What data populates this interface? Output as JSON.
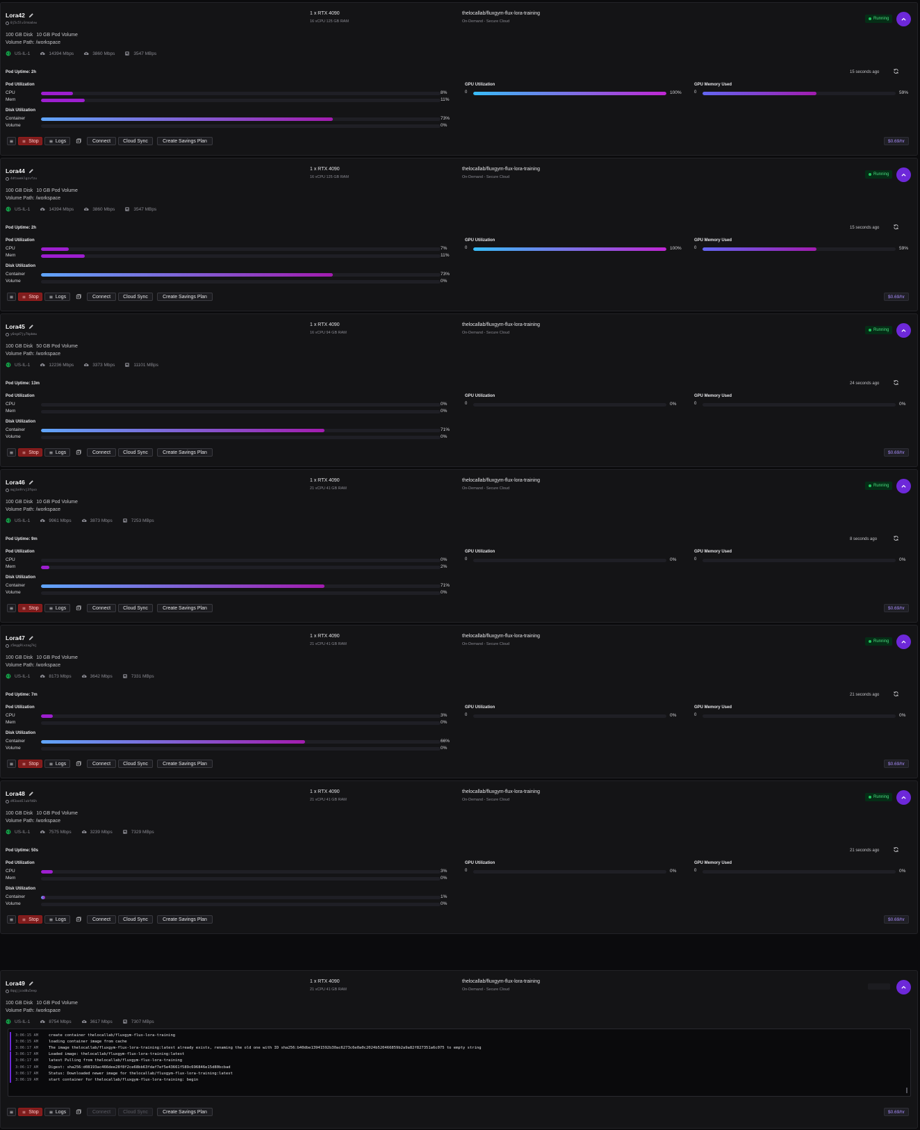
{
  "pods": [
    {
      "name": "Lora42",
      "id": "0j5c5lv3rmadvw",
      "gpu": "1 x RTX 4090",
      "cpu_ram": "16 vCPU 125 GB RAM",
      "image": "thelocallab/fluxgym-flux-lora-training",
      "cloud": "On-Demand - Secure Cloud",
      "status": "Running",
      "disk": "100 GB Disk",
      "pod_volume": "10 GB Pod Volume",
      "volume_path": "Volume Path: /workspace",
      "region": "US-IL-1",
      "net_down": "14394 Mbps",
      "net_up": "3860 Mbps",
      "disk_speed": "3547 MBps",
      "uptime": "Pod Uptime: 2h",
      "updated": "15 seconds ago",
      "pod_util_title": "Pod Utilization",
      "disk_util_title": "Disk Utilization",
      "gpu_util_title": "GPU Utilization",
      "gpu_mem_title": "GPU Memory Used",
      "cpu_label": "CPU",
      "mem_label": "Mem",
      "container_label": "Container",
      "volume_label": "Volume",
      "cpu_pct": 8,
      "cpu_text": "8%",
      "mem_pct": 11,
      "mem_text": "11%",
      "container_pct": 73,
      "container_text": "73%",
      "volume_pct": 0,
      "volume_text": "0%",
      "gpu_zero": "0",
      "gpu_pct": 100,
      "gpu_text": "100%",
      "gpumem_zero": "0",
      "gpumem_pct": 59,
      "gpumem_text": "59%",
      "stop": "Stop",
      "logs": "Logs",
      "connect": "Connect",
      "cloud_sync": "Cloud Sync",
      "savings": "Create Savings Plan",
      "price": "$0.69/hr"
    },
    {
      "name": "Lora44",
      "id": "4dtaxmklgzvfzu",
      "gpu": "1 x RTX 4090",
      "cpu_ram": "16 vCPU 125 GB RAM",
      "image": "thelocallab/fluxgym-flux-lora-training",
      "cloud": "On-Demand - Secure Cloud",
      "status": "Running",
      "disk": "100 GB Disk",
      "pod_volume": "10 GB Pod Volume",
      "volume_path": "Volume Path: /workspace",
      "region": "US-IL-1",
      "net_down": "14394 Mbps",
      "net_up": "3860 Mbps",
      "disk_speed": "3547 MBps",
      "uptime": "Pod Uptime: 2h",
      "updated": "15 seconds ago",
      "pod_util_title": "Pod Utilization",
      "disk_util_title": "Disk Utilization",
      "gpu_util_title": "GPU Utilization",
      "gpu_mem_title": "GPU Memory Used",
      "cpu_label": "CPU",
      "mem_label": "Mem",
      "container_label": "Container",
      "volume_label": "Volume",
      "cpu_pct": 7,
      "cpu_text": "7%",
      "mem_pct": 11,
      "mem_text": "11%",
      "container_pct": 73,
      "container_text": "73%",
      "volume_pct": 0,
      "volume_text": "0%",
      "gpu_zero": "0",
      "gpu_pct": 100,
      "gpu_text": "100%",
      "gpumem_zero": "0",
      "gpumem_pct": 59,
      "gpumem_text": "59%",
      "stop": "Stop",
      "logs": "Logs",
      "connect": "Connect",
      "cloud_sync": "Cloud Sync",
      "savings": "Create Savings Plan",
      "price": "$0.69/hr"
    },
    {
      "name": "Lora45",
      "id": "y6ngd7jy7bpkmw",
      "gpu": "1 x RTX 4090",
      "cpu_ram": "16 vCPU 94 GB RAM",
      "image": "thelocallab/fluxgym-flux-lora-training",
      "cloud": "On-Demand - Secure Cloud",
      "status": "Running",
      "disk": "100 GB Disk",
      "pod_volume": "50 GB Pod Volume",
      "volume_path": "Volume Path: /workspace",
      "region": "US-IL-1",
      "net_down": "12236 Mbps",
      "net_up": "3373 Mbps",
      "disk_speed": "11101 MBps",
      "uptime": "Pod Uptime: 13m",
      "updated": "24 seconds ago",
      "pod_util_title": "Pod Utilization",
      "disk_util_title": "Disk Utilization",
      "gpu_util_title": "GPU Utilization",
      "gpu_mem_title": "GPU Memory Used",
      "cpu_label": "CPU",
      "mem_label": "Mem",
      "container_label": "Container",
      "volume_label": "Volume",
      "cpu_pct": 0,
      "cpu_text": "0%",
      "mem_pct": 0,
      "mem_text": "0%",
      "container_pct": 71,
      "container_text": "71%",
      "volume_pct": 0,
      "volume_text": "0%",
      "gpu_zero": "0",
      "gpu_pct": 0,
      "gpu_text": "0%",
      "gpumem_zero": "0",
      "gpumem_pct": 0,
      "gpumem_text": "0%",
      "stop": "Stop",
      "logs": "Logs",
      "connect": "Connect",
      "cloud_sync": "Cloud Sync",
      "savings": "Create Savings Plan",
      "price": "$0.69/hr"
    },
    {
      "name": "Lora46",
      "id": "mqjbn9rvj3fqxo",
      "gpu": "1 x RTX 4090",
      "cpu_ram": "21 vCPU 41 GB RAM",
      "image": "thelocallab/fluxgym-flux-lora-training",
      "cloud": "On-Demand - Secure Cloud",
      "status": "Running",
      "disk": "100 GB Disk",
      "pod_volume": "10 GB Pod Volume",
      "volume_path": "Volume Path: /workspace",
      "region": "US-IL-1",
      "net_down": "9961 Mbps",
      "net_up": "3873 Mbps",
      "disk_speed": "7253 MBps",
      "uptime": "Pod Uptime: 9m",
      "updated": "8 seconds ago",
      "pod_util_title": "Pod Utilization",
      "disk_util_title": "Disk Utilization",
      "gpu_util_title": "GPU Utilization",
      "gpu_mem_title": "GPU Memory Used",
      "cpu_label": "CPU",
      "mem_label": "Mem",
      "container_label": "Container",
      "volume_label": "Volume",
      "cpu_pct": 0,
      "cpu_text": "0%",
      "mem_pct": 2,
      "mem_text": "2%",
      "container_pct": 71,
      "container_text": "71%",
      "volume_pct": 0,
      "volume_text": "0%",
      "gpu_zero": "0",
      "gpu_pct": 0,
      "gpu_text": "0%",
      "gpumem_zero": "0",
      "gpumem_pct": 0,
      "gpumem_text": "0%",
      "stop": "Stop",
      "logs": "Logs",
      "connect": "Connect",
      "cloud_sync": "Cloud Sync",
      "savings": "Create Savings Plan",
      "price": "$0.69/hr"
    },
    {
      "name": "Lora47",
      "id": "z5mgg9ixzag7kj",
      "gpu": "1 x RTX 4090",
      "cpu_ram": "21 vCPU 41 GB RAM",
      "image": "thelocallab/fluxgym-flux-lora-training",
      "cloud": "On-Demand - Secure Cloud",
      "status": "Running",
      "disk": "100 GB Disk",
      "pod_volume": "10 GB Pod Volume",
      "volume_path": "Volume Path: /workspace",
      "region": "US-IL-1",
      "net_down": "8173 Mbps",
      "net_up": "3642 Mbps",
      "disk_speed": "7331 MBps",
      "uptime": "Pod Uptime: 7m",
      "updated": "21 seconds ago",
      "pod_util_title": "Pod Utilization",
      "disk_util_title": "Disk Utilization",
      "gpu_util_title": "GPU Utilization",
      "gpu_mem_title": "GPU Memory Used",
      "cpu_label": "CPU",
      "mem_label": "Mem",
      "container_label": "Container",
      "volume_label": "Volume",
      "cpu_pct": 3,
      "cpu_text": "3%",
      "mem_pct": 0,
      "mem_text": "0%",
      "container_pct": 66,
      "container_text": "66%",
      "volume_pct": 0,
      "volume_text": "0%",
      "gpu_zero": "0",
      "gpu_pct": 0,
      "gpu_text": "0%",
      "gpumem_zero": "0",
      "gpumem_pct": 0,
      "gpumem_text": "0%",
      "stop": "Stop",
      "logs": "Logs",
      "connect": "Connect",
      "cloud_sync": "Cloud Sync",
      "savings": "Create Savings Plan",
      "price": "$0.69/hr"
    },
    {
      "name": "Lora48",
      "id": "d93aod1lubfd6h",
      "gpu": "1 x RTX 4090",
      "cpu_ram": "21 vCPU 41 GB RAM",
      "image": "thelocallab/fluxgym-flux-lora-training",
      "cloud": "On-Demand - Secure Cloud",
      "status": "Running",
      "disk": "100 GB Disk",
      "pod_volume": "10 GB Pod Volume",
      "volume_path": "Volume Path: /workspace",
      "region": "US-IL-1",
      "net_down": "7575 Mbps",
      "net_up": "3239 Mbps",
      "disk_speed": "7329 MBps",
      "uptime": "Pod Uptime: 50s",
      "updated": "21 seconds ago",
      "pod_util_title": "Pod Utilization",
      "disk_util_title": "Disk Utilization",
      "gpu_util_title": "GPU Utilization",
      "gpu_mem_title": "GPU Memory Used",
      "cpu_label": "CPU",
      "mem_label": "Mem",
      "container_label": "Container",
      "volume_label": "Volume",
      "cpu_pct": 3,
      "cpu_text": "3%",
      "mem_pct": 0,
      "mem_text": "0%",
      "container_pct": 1,
      "container_text": "1%",
      "volume_pct": 0,
      "volume_text": "0%",
      "gpu_zero": "0",
      "gpu_pct": 0,
      "gpu_text": "0%",
      "gpumem_zero": "0",
      "gpumem_pct": 0,
      "gpumem_text": "0%",
      "stop": "Stop",
      "logs": "Logs",
      "connect": "Connect",
      "cloud_sync": "Cloud Sync",
      "savings": "Create Savings Plan",
      "price": "$0.69/hr"
    }
  ],
  "last_pod": {
    "name": "Lora49",
    "id": "8qqjjcod8u5eep",
    "gpu": "1 x RTX 4090",
    "cpu_ram": "21 vCPU 41 GB RAM",
    "image": "thelocallab/fluxgym-flux-lora-training",
    "cloud": "On-Demand - Secure Cloud",
    "disk": "100 GB Disk",
    "pod_volume": "10 GB Pod Volume",
    "volume_path": "Volume Path: /workspace",
    "region": "US-IL-1",
    "net_down": "8754 Mbps",
    "net_up": "3617 Mbps",
    "disk_speed": "7307 MBps",
    "logs": [
      {
        "time": "3:06:15 AM",
        "text": "create container thelocallab/fluxgym-flux-lora-training"
      },
      {
        "time": "3:06:15 AM",
        "text": "loading container image from cache"
      },
      {
        "time": "3:06:17 AM",
        "text": "The image thelocallab/fluxgym-flux-lora-training:latest already exists, renaming the old one with ID sha256:b40dbe13941592b30ac6273c6e0a0c2024b520466859b2a9a82f827351a6c075 to empty string"
      },
      {
        "time": "3:06:17 AM",
        "text": "Loaded image: thelocallab/fluxgym-flux-lora-training:latest"
      },
      {
        "time": "3:06:17 AM",
        "text": "latest Pulling from thelocallab/fluxgym-flux-lora-training"
      },
      {
        "time": "3:06:17 AM",
        "text": "Digest: sha256:d08193ac466dee28f8f2ce68bb63fdaf7ef5e43661f589c696846e15d80bcbad"
      },
      {
        "time": "3:06:17 AM",
        "text": "Status: Downloaded newer image for thelocallab/fluxgym-flux-lora-training:latest"
      },
      {
        "time": "3:06:19 AM",
        "text": "start container for thelocallab/fluxgym-flux-lora-training: begin"
      }
    ],
    "stop": "Stop",
    "logs_label": "Logs",
    "connect": "Connect",
    "cloud_sync": "Cloud Sync",
    "savings": "Create Savings Plan",
    "price": "$0.69/hr"
  },
  "colors": {
    "accent": "#6d28d9",
    "running": "#22c55e",
    "stop": "#7f1d1d",
    "price": "#a78bfa"
  }
}
